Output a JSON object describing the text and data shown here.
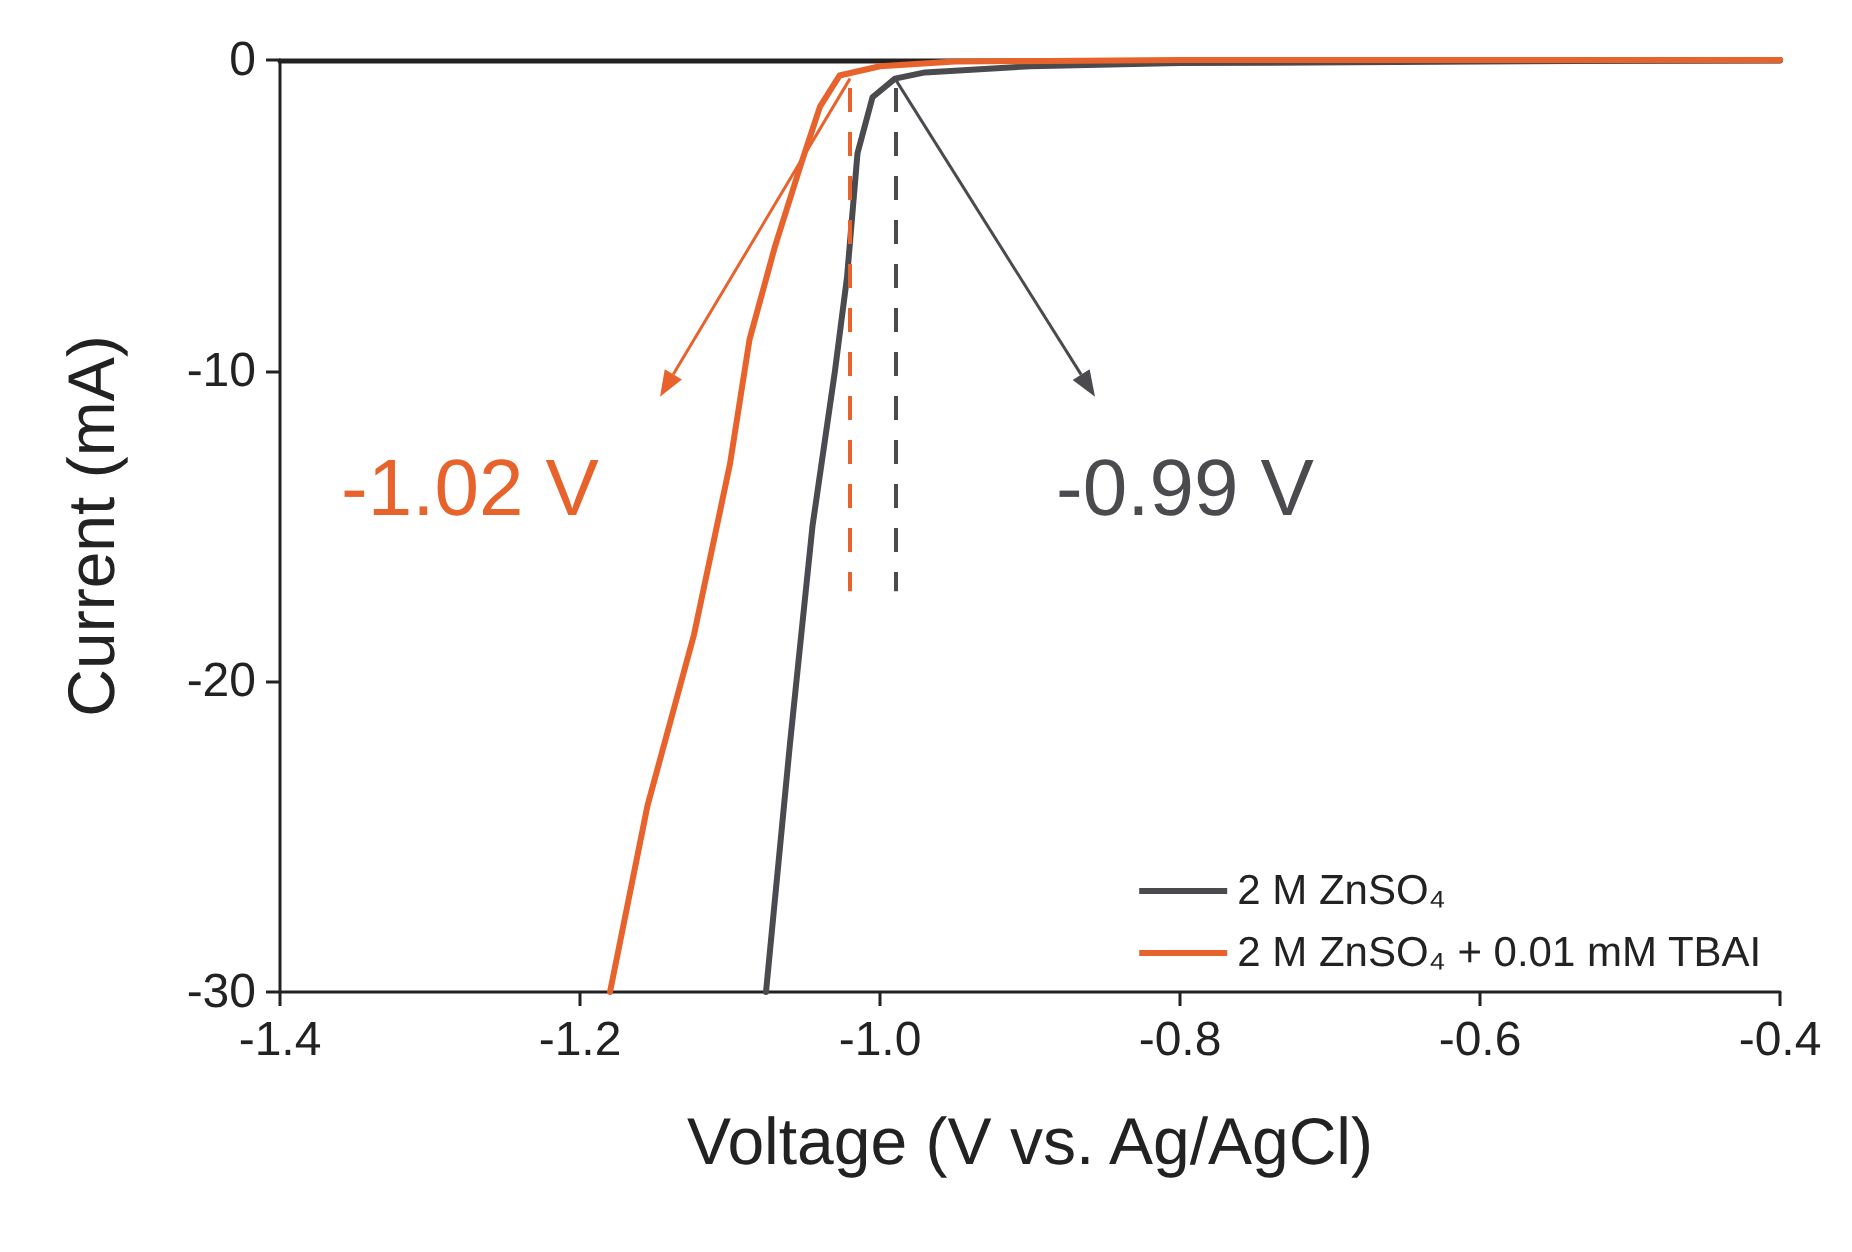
{
  "chart_data": {
    "type": "line",
    "xlabel": "Voltage (V vs. Ag/AgCl)",
    "ylabel": "Current (mA)",
    "xlim": [
      -1.4,
      -0.4
    ],
    "xticks": [
      -1.4,
      -1.2,
      {
        "value": -1,
        "label": "-1.0"
      },
      -0.8,
      -0.6,
      -0.4
    ],
    "ylim": [
      -30,
      0
    ],
    "yticks": [
      -30,
      -20,
      -10,
      0
    ],
    "grid": false,
    "legend": "bottom right",
    "marker": "none",
    "line_style": "solid",
    "series": [
      {
        "name": "2 M ZnSO₄",
        "color": "#4a4a4f",
        "x": [
          -1.076,
          -1.06,
          -1.045,
          -1.03,
          -1.022,
          -1.015,
          -1.005,
          -0.99,
          -0.97,
          -0.9,
          -0.8,
          -0.6,
          -0.4
        ],
        "values": [
          -30,
          -22,
          -15,
          -10,
          -7,
          -3,
          -1.2,
          -0.6,
          -0.4,
          -0.2,
          -0.1,
          -0.05,
          0
        ]
      },
      {
        "name": "2 M ZnSO₄ + 0.01 mM TBAI",
        "color": "#e8622c",
        "x": [
          -1.18,
          -1.155,
          -1.124,
          -1.1,
          -1.087,
          -1.07,
          -1.053,
          -1.04,
          -1.027,
          -1.0,
          -0.95,
          -0.8,
          -0.6,
          -0.4
        ],
        "values": [
          -30,
          -24,
          -18.5,
          -13,
          -9,
          -6,
          -3.4,
          -1.5,
          -0.5,
          -0.2,
          -0.05,
          0,
          0,
          0
        ]
      }
    ],
    "ref_lines": [
      {
        "axis": "x",
        "value": -1.02,
        "label": "-1.02 V",
        "color": "#e8622c",
        "line_style": "dashed"
      },
      {
        "axis": "x",
        "value": -0.99,
        "label": "-0.99 V",
        "color": "#4a4a4f",
        "line_style": "dashed"
      }
    ]
  }
}
